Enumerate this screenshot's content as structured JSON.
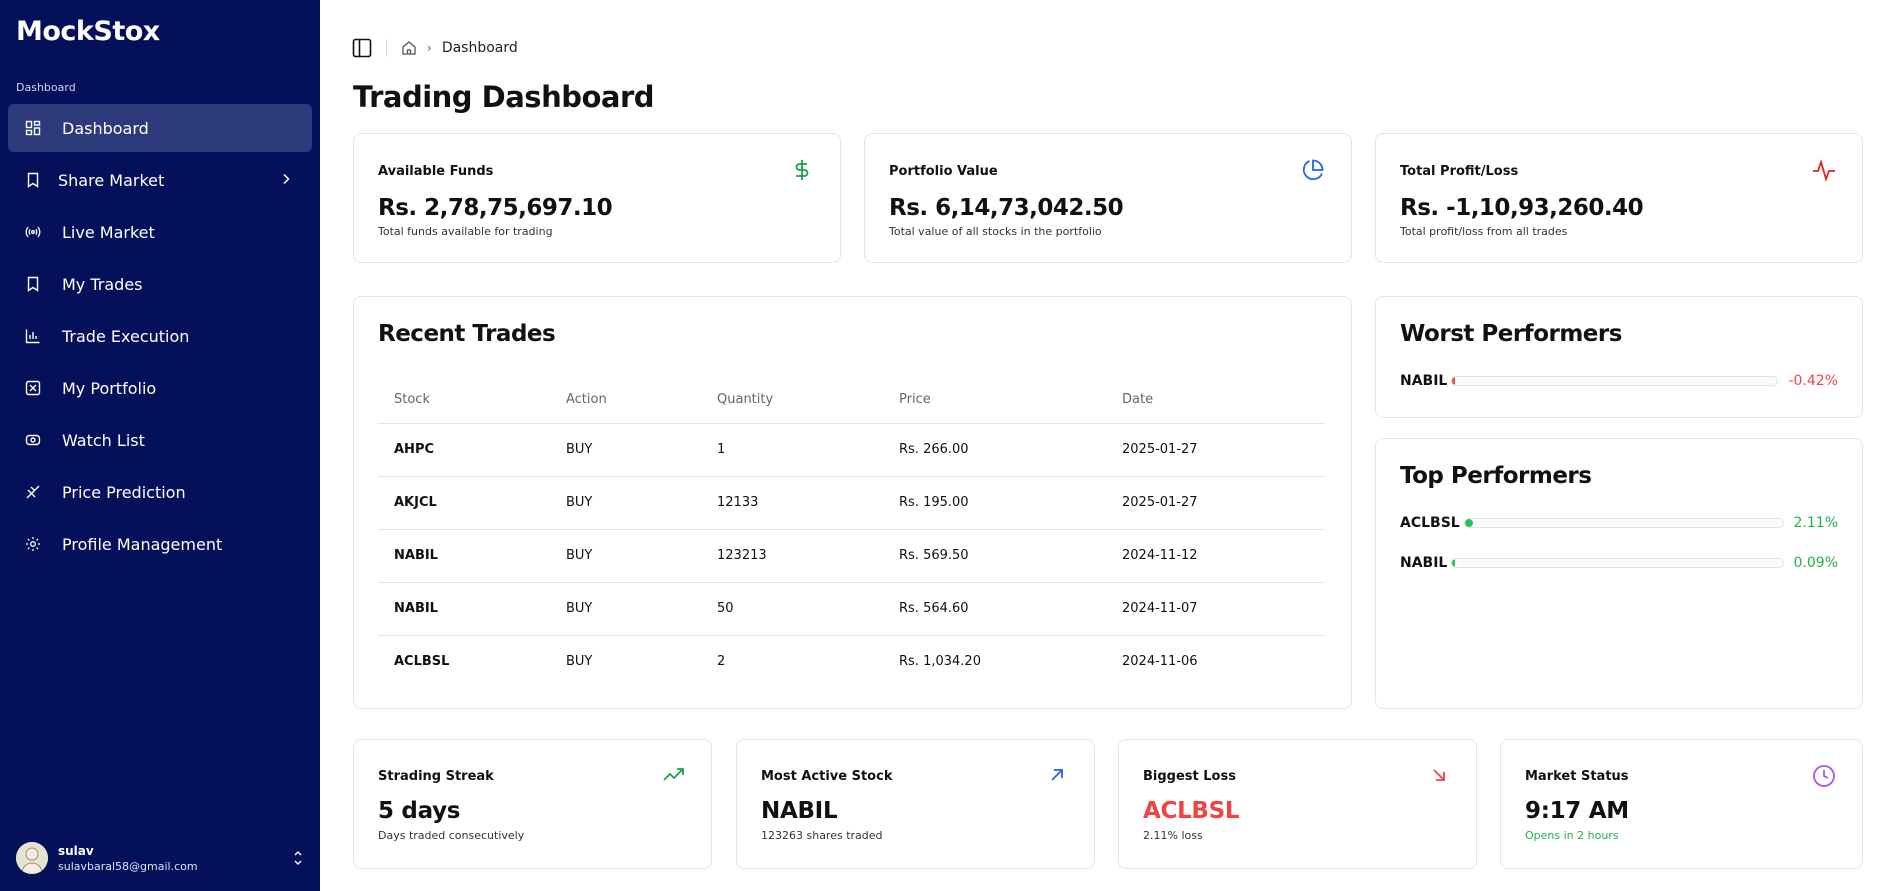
{
  "app": {
    "name": "MockStox"
  },
  "sidebar": {
    "section_label": "Dashboard",
    "items": [
      {
        "label": "Dashboard",
        "icon": "dashboard-icon",
        "active": true
      },
      {
        "label": "Share Market",
        "icon": "bookmark-icon",
        "has_submenu": true
      },
      {
        "label": "Live Market",
        "icon": "broadcast-icon"
      },
      {
        "label": "My Trades",
        "icon": "bookmark-icon"
      },
      {
        "label": "Trade Execution",
        "icon": "chart-icon"
      },
      {
        "label": "My Portfolio",
        "icon": "square-x-icon"
      },
      {
        "label": "Watch List",
        "icon": "watch-icon"
      },
      {
        "label": "Price Prediction",
        "icon": "stairs-icon"
      },
      {
        "label": "Profile Management",
        "icon": "gear-icon"
      }
    ],
    "user": {
      "name": "sulav",
      "email": "sulavbaral58@gmail.com"
    }
  },
  "header": {
    "breadcrumb": "Dashboard",
    "title": "Trading Dashboard"
  },
  "stats": [
    {
      "label": "Available Funds",
      "value": "Rs. 2,78,75,697.10",
      "desc": "Total funds available for trading",
      "icon": "dollar-icon",
      "color": "#16a34a"
    },
    {
      "label": "Portfolio Value",
      "value": "Rs. 6,14,73,042.50",
      "desc": "Total value of all stocks in the portfolio",
      "icon": "pie-chart-icon",
      "color": "#2563eb"
    },
    {
      "label": "Total Profit/Loss",
      "value": "Rs. -1,10,93,260.40",
      "desc": "Total profit/loss from all trades",
      "icon": "activity-icon",
      "color": "#dc2626"
    }
  ],
  "recent_trades": {
    "title": "Recent Trades",
    "columns": [
      "Stock",
      "Action",
      "Quantity",
      "Price",
      "Date"
    ],
    "rows": [
      {
        "stock": "AHPC",
        "action": "BUY",
        "quantity": "1",
        "price": "Rs. 266.00",
        "date": "2025-01-27"
      },
      {
        "stock": "AKJCL",
        "action": "BUY",
        "quantity": "12133",
        "price": "Rs. 195.00",
        "date": "2025-01-27"
      },
      {
        "stock": "NABIL",
        "action": "BUY",
        "quantity": "123213",
        "price": "Rs. 569.50",
        "date": "2024-11-12"
      },
      {
        "stock": "NABIL",
        "action": "BUY",
        "quantity": "50",
        "price": "Rs. 564.60",
        "date": "2024-11-07"
      },
      {
        "stock": "ACLBSL",
        "action": "BUY",
        "quantity": "2",
        "price": "Rs. 1,034.20",
        "date": "2024-11-06"
      }
    ]
  },
  "worst_performers": {
    "title": "Worst Performers",
    "items": [
      {
        "name": "NABIL",
        "value": "-0.42%",
        "fraction": 0.0042,
        "color": "#ef4444"
      }
    ]
  },
  "top_performers": {
    "title": "Top Performers",
    "items": [
      {
        "name": "ACLBSL",
        "value": "2.11%",
        "fraction": 0.0211,
        "color": "#22c55e"
      },
      {
        "name": "NABIL",
        "value": "0.09%",
        "fraction": 0.0009,
        "color": "#22c55e"
      }
    ]
  },
  "mini_stats": [
    {
      "label": "Strading Streak",
      "value": "5 days",
      "desc": "Days traded consecutively",
      "icon": "trending-up-icon",
      "color": "#16a34a"
    },
    {
      "label": "Most Active Stock",
      "value": "NABIL",
      "desc": "123263 shares traded",
      "icon": "arrow-up-right-icon",
      "color": "#2563eb"
    },
    {
      "label": "Biggest Loss",
      "value": "ACLBSL",
      "desc": "2.11% loss",
      "icon": "arrow-down-right-icon",
      "color": "#ef4444"
    },
    {
      "label": "Market Status",
      "value": "9:17 AM",
      "desc": "Opens in 2 hours",
      "icon": "clock-icon",
      "color": "#a855f7"
    }
  ]
}
